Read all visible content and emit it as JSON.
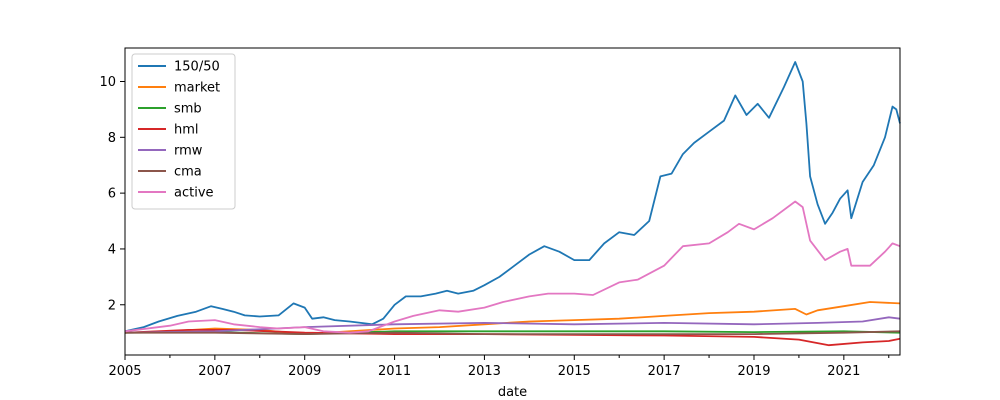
{
  "chart_data": {
    "type": "line",
    "title": "",
    "xlabel": "date",
    "ylabel": "",
    "xlim": [
      "2005-01",
      "2022-04"
    ],
    "ylim": [
      0.2,
      11.2
    ],
    "grid": false,
    "legend_position": "upper-left",
    "x_ticks": [
      "2005",
      "2007",
      "2009",
      "2011",
      "2013",
      "2015",
      "2017",
      "2019",
      "2021"
    ],
    "y_ticks": [
      "2",
      "4",
      "6",
      "8",
      "10"
    ],
    "series": [
      {
        "name": "150/50",
        "color": "#1f77b4",
        "points": [
          [
            "2005-01",
            1.05
          ],
          [
            "2005-06",
            1.2
          ],
          [
            "2005-10",
            1.4
          ],
          [
            "2006-03",
            1.6
          ],
          [
            "2006-08",
            1.75
          ],
          [
            "2006-12",
            1.95
          ],
          [
            "2007-03",
            1.85
          ],
          [
            "2007-06",
            1.75
          ],
          [
            "2007-09",
            1.62
          ],
          [
            "2008-01",
            1.58
          ],
          [
            "2008-06",
            1.62
          ],
          [
            "2008-10",
            2.05
          ],
          [
            "2009-01",
            1.9
          ],
          [
            "2009-03",
            1.5
          ],
          [
            "2009-06",
            1.55
          ],
          [
            "2009-09",
            1.45
          ],
          [
            "2010-01",
            1.4
          ],
          [
            "2010-04",
            1.35
          ],
          [
            "2010-07",
            1.3
          ],
          [
            "2010-10",
            1.5
          ],
          [
            "2011-01",
            2.0
          ],
          [
            "2011-04",
            2.3
          ],
          [
            "2011-08",
            2.3
          ],
          [
            "2011-12",
            2.4
          ],
          [
            "2012-03",
            2.5
          ],
          [
            "2012-06",
            2.4
          ],
          [
            "2012-10",
            2.5
          ],
          [
            "2013-01",
            2.7
          ],
          [
            "2013-05",
            3.0
          ],
          [
            "2013-09",
            3.4
          ],
          [
            "2014-01",
            3.8
          ],
          [
            "2014-05",
            4.1
          ],
          [
            "2014-09",
            3.9
          ],
          [
            "2015-01",
            3.6
          ],
          [
            "2015-05",
            3.6
          ],
          [
            "2015-09",
            4.2
          ],
          [
            "2016-01",
            4.6
          ],
          [
            "2016-05",
            4.5
          ],
          [
            "2016-09",
            5.0
          ],
          [
            "2016-12",
            6.6
          ],
          [
            "2017-03",
            6.7
          ],
          [
            "2017-06",
            7.4
          ],
          [
            "2017-09",
            7.8
          ],
          [
            "2018-01",
            8.2
          ],
          [
            "2018-05",
            8.6
          ],
          [
            "2018-08",
            9.5
          ],
          [
            "2018-11",
            8.8
          ],
          [
            "2019-02",
            9.2
          ],
          [
            "2019-05",
            8.7
          ],
          [
            "2019-09",
            9.8
          ],
          [
            "2019-12",
            10.7
          ],
          [
            "2020-02",
            10.0
          ],
          [
            "2020-03",
            8.5
          ],
          [
            "2020-04",
            6.6
          ],
          [
            "2020-06",
            5.6
          ],
          [
            "2020-08",
            4.9
          ],
          [
            "2020-10",
            5.3
          ],
          [
            "2020-12",
            5.8
          ],
          [
            "2021-02",
            6.1
          ],
          [
            "2021-03",
            5.1
          ],
          [
            "2021-06",
            6.4
          ],
          [
            "2021-09",
            7.0
          ],
          [
            "2021-12",
            8.0
          ],
          [
            "2022-02",
            9.1
          ],
          [
            "2022-03",
            9.0
          ],
          [
            "2022-04",
            8.5
          ]
        ]
      },
      {
        "name": "market",
        "color": "#ff7f0e",
        "points": [
          [
            "2005-01",
            1.0
          ],
          [
            "2006-01",
            1.05
          ],
          [
            "2007-01",
            1.15
          ],
          [
            "2008-01",
            1.1
          ],
          [
            "2009-01",
            0.95
          ],
          [
            "2010-01",
            1.05
          ],
          [
            "2011-01",
            1.15
          ],
          [
            "2012-01",
            1.2
          ],
          [
            "2013-01",
            1.3
          ],
          [
            "2014-01",
            1.4
          ],
          [
            "2015-01",
            1.45
          ],
          [
            "2016-01",
            1.5
          ],
          [
            "2017-01",
            1.6
          ],
          [
            "2018-01",
            1.7
          ],
          [
            "2019-01",
            1.75
          ],
          [
            "2019-12",
            1.85
          ],
          [
            "2020-03",
            1.65
          ],
          [
            "2020-06",
            1.8
          ],
          [
            "2021-01",
            1.95
          ],
          [
            "2021-08",
            2.1
          ],
          [
            "2022-04",
            2.05
          ]
        ]
      },
      {
        "name": "smb",
        "color": "#2ca02c",
        "points": [
          [
            "2005-01",
            1.0
          ],
          [
            "2007-01",
            1.02
          ],
          [
            "2009-01",
            0.95
          ],
          [
            "2011-01",
            1.05
          ],
          [
            "2013-01",
            1.05
          ],
          [
            "2015-01",
            1.05
          ],
          [
            "2017-01",
            1.05
          ],
          [
            "2019-01",
            1.02
          ],
          [
            "2021-01",
            1.05
          ],
          [
            "2022-04",
            1.0
          ]
        ]
      },
      {
        "name": "hml",
        "color": "#d62728",
        "points": [
          [
            "2005-01",
            1.0
          ],
          [
            "2006-06",
            1.1
          ],
          [
            "2007-06",
            1.1
          ],
          [
            "2009-01",
            1.0
          ],
          [
            "2011-01",
            0.95
          ],
          [
            "2013-01",
            0.95
          ],
          [
            "2015-01",
            0.92
          ],
          [
            "2017-01",
            0.9
          ],
          [
            "2019-01",
            0.85
          ],
          [
            "2020-01",
            0.75
          ],
          [
            "2020-09",
            0.55
          ],
          [
            "2021-06",
            0.65
          ],
          [
            "2022-01",
            0.7
          ],
          [
            "2022-04",
            0.78
          ]
        ]
      },
      {
        "name": "rmw",
        "color": "#9467bd",
        "points": [
          [
            "2005-01",
            1.0
          ],
          [
            "2007-01",
            1.05
          ],
          [
            "2009-01",
            1.2
          ],
          [
            "2011-01",
            1.3
          ],
          [
            "2013-01",
            1.35
          ],
          [
            "2015-01",
            1.3
          ],
          [
            "2017-01",
            1.35
          ],
          [
            "2019-01",
            1.3
          ],
          [
            "2020-06",
            1.35
          ],
          [
            "2021-06",
            1.4
          ],
          [
            "2022-01",
            1.55
          ],
          [
            "2022-04",
            1.5
          ]
        ]
      },
      {
        "name": "cma",
        "color": "#8c564b",
        "points": [
          [
            "2005-01",
            1.0
          ],
          [
            "2007-01",
            1.0
          ],
          [
            "2009-01",
            0.95
          ],
          [
            "2011-01",
            1.0
          ],
          [
            "2013-01",
            0.95
          ],
          [
            "2015-01",
            0.95
          ],
          [
            "2017-01",
            0.95
          ],
          [
            "2019-01",
            0.95
          ],
          [
            "2021-01",
            1.0
          ],
          [
            "2022-04",
            1.05
          ]
        ]
      },
      {
        "name": "active",
        "color": "#e377c2",
        "points": [
          [
            "2005-01",
            1.05
          ],
          [
            "2006-01",
            1.25
          ],
          [
            "2006-06",
            1.4
          ],
          [
            "2007-01",
            1.45
          ],
          [
            "2007-06",
            1.3
          ],
          [
            "2008-01",
            1.2
          ],
          [
            "2008-06",
            1.15
          ],
          [
            "2009-01",
            1.2
          ],
          [
            "2009-06",
            1.05
          ],
          [
            "2010-01",
            1.0
          ],
          [
            "2010-06",
            1.05
          ],
          [
            "2011-01",
            1.4
          ],
          [
            "2011-06",
            1.6
          ],
          [
            "2012-01",
            1.8
          ],
          [
            "2012-06",
            1.75
          ],
          [
            "2013-01",
            1.9
          ],
          [
            "2013-06",
            2.1
          ],
          [
            "2014-01",
            2.3
          ],
          [
            "2014-06",
            2.4
          ],
          [
            "2015-01",
            2.4
          ],
          [
            "2015-06",
            2.35
          ],
          [
            "2016-01",
            2.8
          ],
          [
            "2016-06",
            2.9
          ],
          [
            "2017-01",
            3.4
          ],
          [
            "2017-06",
            4.1
          ],
          [
            "2018-01",
            4.2
          ],
          [
            "2018-06",
            4.6
          ],
          [
            "2018-09",
            4.9
          ],
          [
            "2019-01",
            4.7
          ],
          [
            "2019-06",
            5.1
          ],
          [
            "2019-12",
            5.7
          ],
          [
            "2020-02",
            5.5
          ],
          [
            "2020-04",
            4.3
          ],
          [
            "2020-08",
            3.6
          ],
          [
            "2020-12",
            3.9
          ],
          [
            "2021-02",
            4.0
          ],
          [
            "2021-03",
            3.4
          ],
          [
            "2021-08",
            3.4
          ],
          [
            "2021-12",
            3.9
          ],
          [
            "2022-02",
            4.2
          ],
          [
            "2022-04",
            4.1
          ]
        ]
      }
    ]
  }
}
